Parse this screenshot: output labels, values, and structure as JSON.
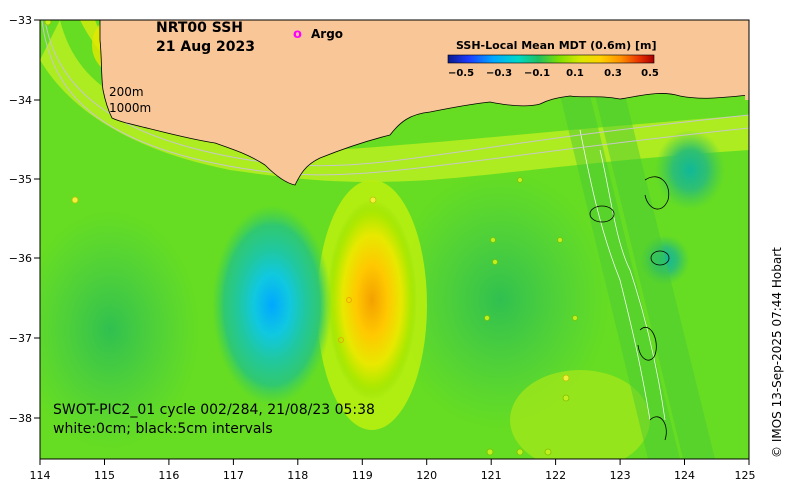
{
  "map": {
    "title_line1": "NRT00 SSH",
    "title_line2": "21 Aug 2023",
    "legend_argo_symbol": "o",
    "legend_argo_label": "Argo",
    "depth_label_200": "200m",
    "depth_label_1000": "1000m",
    "swot_line1": "SWOT-PIC2_01 cycle 002/284, 21/08/23 05:38",
    "swot_line2": "white:0cm; black:5cm intervals",
    "credit": "© IMOS 13-Sep-2025 07:44 Hobart"
  },
  "axes": {
    "x_ticks": [
      "114",
      "115",
      "116",
      "117",
      "118",
      "119",
      "120",
      "121",
      "122",
      "123",
      "124",
      "125"
    ],
    "y_ticks": [
      "−33",
      "−34",
      "−35",
      "−36",
      "−37",
      "−38"
    ]
  },
  "colorbar": {
    "title": "SSH-Local Mean MDT (0.6m) [m]",
    "ticks": [
      "−0.5",
      "−0.3",
      "−0.1",
      "0.1",
      "0.3",
      "0.5"
    ],
    "colors": [
      "#0a1a8c",
      "#1e3cff",
      "#00a8ff",
      "#00d8c8",
      "#20c060",
      "#80e000",
      "#d8e800",
      "#ffd200",
      "#ff9000",
      "#e83000",
      "#a80000"
    ]
  },
  "colors": {
    "land": "#f9c698",
    "ocean_base": "#66dd22",
    "argo_marker": "#ff00ff"
  }
}
